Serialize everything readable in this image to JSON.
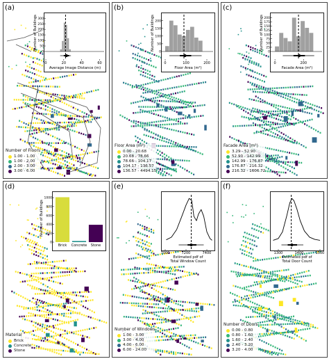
{
  "palette": {
    "c1": "#fde725",
    "c2": "#35b779",
    "c3": "#31688e",
    "c4": "#440154",
    "c5": "#2a788e",
    "c6": "#21918c",
    "c7": "#3b528b",
    "hist": "#a0a0a0"
  },
  "panels": [
    {
      "id": "a",
      "label": "(a)",
      "legend": {
        "title": "Number of Floors",
        "entries": [
          "1.00 - 1.00",
          "1.00 - 2.00",
          "2.00 - 3.00",
          "3.00 - 6.00"
        ],
        "colors": [
          "#fde725",
          "#35b779",
          "#31688e",
          "#440154"
        ]
      },
      "chart_data": {
        "type": "histogram",
        "xlabel": "Average Image Distance (m)",
        "ylabel": "Number of Buildings",
        "xticks": [
          "0",
          "20",
          "40",
          "60"
        ],
        "yticks": [
          "0",
          "50",
          "100",
          "150",
          "200",
          "250",
          "300"
        ],
        "xlim": [
          0,
          65
        ],
        "ylim": [
          0,
          320
        ],
        "bins": [
          16,
          18,
          20,
          22,
          24,
          26,
          28
        ],
        "counts": [
          20,
          95,
          260,
          240,
          120,
          20
        ],
        "mean_line": 22,
        "boxplot": {
          "min": 16,
          "q1": 20,
          "median": 23,
          "q3": 26,
          "max": 28
        }
      }
    },
    {
      "id": "b",
      "label": "(b)",
      "legend": {
        "title": "Floor Area (m²)",
        "entries": [
          "0.00 - 20.68",
          "20.68 - 78.66",
          "78.66 - 104.17",
          "104.17 - 136.57",
          "136.57 - 4494.15"
        ],
        "colors": [
          "#fde725",
          "#35b779",
          "#21918c",
          "#31688e",
          "#440154"
        ]
      },
      "chart_data": {
        "type": "histogram",
        "xlabel": "Floor Area (m²)",
        "ylabel": "Number of Buildings",
        "xticks": [
          "0",
          "100",
          "200"
        ],
        "yticks": [
          "0",
          "50",
          "100",
          "150",
          "200"
        ],
        "xlim": [
          -10,
          230
        ],
        "ylim": [
          0,
          230
        ],
        "bins": [
          0,
          20,
          40,
          60,
          80,
          100,
          120,
          140,
          160,
          180
        ],
        "counts": [
          35,
          200,
          170,
          110,
          100,
          140,
          160,
          90,
          70
        ],
        "mean_line": 90,
        "boxplot": {
          "min": 20,
          "q1": 70,
          "median": 95,
          "q3": 125,
          "max": 175
        }
      }
    },
    {
      "id": "c",
      "label": "(c)",
      "legend": {
        "title": "Facade Area (m²)",
        "entries": [
          "3.29 - 52.90",
          "52.90 - 142.99",
          "142.99 - 176.87",
          "176.87 - 216.32",
          "216.32 - 1606.72"
        ],
        "colors": [
          "#fde725",
          "#35b779",
          "#21918c",
          "#31688e",
          "#440154"
        ]
      },
      "chart_data": {
        "type": "histogram",
        "xlabel": "Facade Area (m²)",
        "ylabel": "Number of Buildings",
        "xticks": [
          "0",
          "200"
        ],
        "yticks": [
          "0",
          "25",
          "50",
          "75",
          "100",
          "125",
          "150",
          "175",
          "200"
        ],
        "xlim": [
          -20,
          330
        ],
        "ylim": [
          0,
          210
        ],
        "bins": [
          0,
          30,
          60,
          90,
          120,
          150,
          180,
          210,
          240,
          270
        ],
        "counts": [
          30,
          110,
          80,
          60,
          200,
          90,
          180,
          140,
          110
        ],
        "mean_line": 165,
        "boxplot": {
          "min": 55,
          "q1": 130,
          "median": 170,
          "q3": 210,
          "max": 275
        }
      }
    },
    {
      "id": "d",
      "label": "(d)",
      "legend": {
        "title": "Material",
        "entries": [
          "Brick",
          "Concrete",
          "Stone"
        ],
        "colors": [
          "#fde725",
          "#21918c",
          "#440154"
        ]
      },
      "chart_data": {
        "type": "bar",
        "categories": [
          "Brick",
          "Concrete",
          "Stone"
        ],
        "values": [
          1010,
          25,
          390
        ],
        "colors": [
          "#d8dc3c",
          "#21918c",
          "#440154"
        ],
        "xlabel": "",
        "ylabel": "Number of Buildings",
        "yticks": [
          "0",
          "200",
          "400",
          "600",
          "800",
          "1000"
        ],
        "ylim": [
          0,
          1080
        ]
      }
    },
    {
      "id": "e",
      "label": "(e)",
      "legend": {
        "title": "Number of Windows",
        "entries": [
          "1.00 - 3.00",
          "3.00 - 4.00",
          "4.00 - 6.00",
          "6.00 - 24.00"
        ],
        "colors": [
          "#fde725",
          "#35b779",
          "#31688e",
          "#440154"
        ]
      },
      "chart_data": {
        "type": "line",
        "xlabel": "Estimated pdf of Total Window Count",
        "xlabel_line1": "Estimated pdf of",
        "xlabel_line2": "Total Window Count",
        "ylabel": "",
        "xticks": [
          "7000",
          "7200",
          "7400"
        ],
        "xlim": [
          6980,
          7460
        ],
        "ylim": [
          0,
          1
        ],
        "x": [
          7010,
          7060,
          7110,
          7160,
          7200,
          7230,
          7255,
          7275,
          7300,
          7320,
          7345,
          7370,
          7400,
          7430,
          7450
        ],
        "y": [
          0.02,
          0.08,
          0.25,
          0.55,
          0.8,
          0.95,
          0.9,
          0.55,
          0.45,
          0.6,
          0.7,
          0.55,
          0.2,
          0.05,
          0.01
        ],
        "mean_line": 7250,
        "boxplot": {
          "min": 7130,
          "q1": 7215,
          "median": 7250,
          "q3": 7300,
          "max": 7370
        }
      }
    },
    {
      "id": "f",
      "label": "(f)",
      "legend": {
        "title": "Number of Doors",
        "entries": [
          "0.00 - 0.80",
          "0.80 - 1.60",
          "1.60 - 2.40",
          "2.40 - 3.20",
          "3.20 - 4.00"
        ],
        "colors": [
          "#fde725",
          "#35b779",
          "#21918c",
          "#31688e",
          "#440154"
        ]
      },
      "chart_data": {
        "type": "line",
        "xlabel": "Estimated pdf of Total Door Count",
        "xlabel_line1": "Estimated pdf of",
        "xlabel_line2": "Total Door Count",
        "ylabel": "",
        "xticks": [
          "1300",
          "1400",
          "1500"
        ],
        "xlim": [
          1270,
          1510
        ],
        "ylim": [
          0,
          1
        ],
        "x": [
          1275,
          1300,
          1320,
          1340,
          1355,
          1365,
          1375,
          1390,
          1405,
          1425,
          1450,
          1475,
          1500
        ],
        "y": [
          0.01,
          0.05,
          0.2,
          0.55,
          0.85,
          0.95,
          0.9,
          0.7,
          0.45,
          0.22,
          0.08,
          0.03,
          0.01
        ],
        "mean_line": 1362,
        "boxplot": {
          "min": 1315,
          "q1": 1345,
          "median": 1365,
          "q3": 1390,
          "max": 1420
        }
      }
    }
  ]
}
